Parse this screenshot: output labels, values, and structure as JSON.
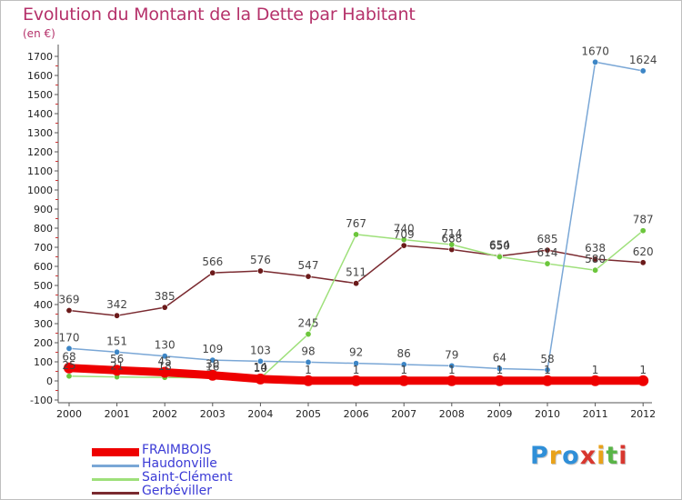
{
  "title": "Evolution du Montant de la Dette par Habitant",
  "unit": "(en €)",
  "logo": {
    "letters": [
      "P",
      "r",
      "o",
      "x",
      "i",
      "t",
      "i"
    ],
    "colors": [
      "#2f8fd8",
      "#e9a21a",
      "#2f8fd8",
      "#d8372f",
      "#e9a21a",
      "#59b447",
      "#d8372f"
    ]
  },
  "chart_data": {
    "type": "line",
    "title": "Evolution du Montant de la Dette par Habitant",
    "ylabel": "(en €)",
    "xlabel": "",
    "ylim": [
      -100,
      1700
    ],
    "y_ticks": [
      -100,
      0,
      100,
      200,
      300,
      400,
      500,
      600,
      700,
      800,
      900,
      1000,
      1100,
      1200,
      1300,
      1400,
      1500,
      1600,
      1700
    ],
    "x": [
      "2000",
      "2001",
      "2002",
      "2003",
      "2004",
      "2005",
      "2006",
      "2007",
      "2008",
      "2009",
      "2010",
      "2011",
      "2012"
    ],
    "grid": false,
    "legend": "bottom-left",
    "series": [
      {
        "name": "Gerbéviller",
        "color": "#7a2a30",
        "marker": "#6b1a1a",
        "values": [
          369,
          342,
          385,
          566,
          576,
          547,
          511,
          709,
          688,
          654,
          685,
          638,
          620
        ]
      },
      {
        "name": "Saint-Clément",
        "color": "#9ee07a",
        "marker": "#6cc63c",
        "values": [
          25,
          21,
          18,
          16,
          14,
          245,
          767,
          740,
          714,
          650,
          614,
          580,
          787
        ]
      },
      {
        "name": "Haudonville",
        "color": "#7aa7d6",
        "marker": "#3d86c6",
        "values": [
          170,
          151,
          130,
          109,
          103,
          98,
          92,
          86,
          79,
          64,
          58,
          1670,
          1624
        ]
      },
      {
        "name": "FRAIMBOIS",
        "color": "#ee0000",
        "marker": "#ee0000",
        "values": [
          68,
          56,
          45,
          30,
          10,
          1,
          1,
          1,
          1,
          1,
          1,
          1,
          1
        ]
      }
    ],
    "legend_order": [
      "FRAIMBOIS",
      "Haudonville",
      "Saint-Clément",
      "Gerbéviller"
    ]
  }
}
